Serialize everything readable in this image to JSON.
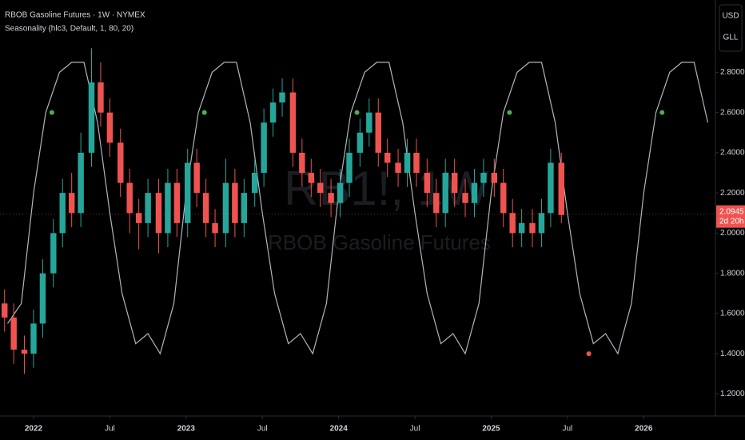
{
  "chart_data": {
    "type": "candlestick",
    "title": "RBOB Gasoline Futures · 1W · NYMEX",
    "subtitle": "Seasonality (hlc3, Default, 1, 80, 20)",
    "watermark": [
      "RB1!, 1W",
      "RBOB Gasoline Futures"
    ],
    "currency_buttons": [
      "USD",
      "GLL"
    ],
    "up_color": "#26a69a",
    "down_color": "#ef5350",
    "x": [
      2021.81,
      2021.87,
      2021.94,
      2022.0,
      2022.06,
      2022.13,
      2022.19,
      2022.25,
      2022.31,
      2022.38,
      2022.44,
      2022.5,
      2022.57,
      2022.63,
      2022.69,
      2022.75,
      2022.82,
      2022.88,
      2022.94,
      2023.01,
      2023.07,
      2023.13,
      2023.19,
      2023.26,
      2023.32,
      2023.38,
      2023.45,
      2023.51,
      2023.57,
      2023.63,
      2023.7,
      2023.76,
      2023.82,
      2023.88,
      2023.95,
      2024.01,
      2024.07,
      2024.14,
      2024.2,
      2024.26,
      2024.32,
      2024.39,
      2024.45,
      2024.51,
      2024.58,
      2024.64,
      2024.7,
      2024.76,
      2024.83,
      2024.89,
      2024.95,
      2025.02,
      2025.08,
      2025.14,
      2025.2,
      2025.27,
      2025.33,
      2025.39,
      2025.46
    ],
    "open": [
      1.65,
      1.58,
      1.42,
      1.4,
      1.55,
      1.8,
      2.0,
      2.2,
      2.1,
      2.4,
      2.75,
      2.6,
      2.45,
      2.25,
      2.1,
      2.05,
      2.2,
      2.0,
      2.25,
      2.05,
      2.35,
      2.2,
      2.05,
      2.0,
      2.25,
      2.05,
      2.2,
      2.3,
      2.55,
      2.65,
      2.7,
      2.4,
      2.3,
      2.25,
      2.2,
      2.15,
      2.25,
      2.4,
      2.5,
      2.6,
      2.4,
      2.35,
      2.3,
      2.4,
      2.3,
      2.2,
      2.1,
      2.3,
      2.2,
      2.15,
      2.25,
      2.3,
      2.25,
      2.1,
      2.0,
      2.05,
      2.0,
      2.1,
      2.35
    ],
    "high": [
      1.72,
      1.65,
      1.49,
      1.62,
      1.87,
      2.07,
      2.27,
      2.3,
      2.5,
      2.92,
      2.85,
      2.67,
      2.52,
      2.32,
      2.17,
      2.27,
      2.27,
      2.32,
      2.32,
      2.42,
      2.42,
      2.27,
      2.12,
      2.37,
      2.32,
      2.27,
      2.37,
      2.62,
      2.72,
      2.77,
      2.77,
      2.47,
      2.37,
      2.32,
      2.27,
      2.32,
      2.47,
      2.57,
      2.67,
      2.67,
      2.47,
      2.42,
      2.47,
      2.47,
      2.37,
      2.27,
      2.37,
      2.37,
      2.27,
      2.32,
      2.37,
      2.37,
      2.32,
      2.17,
      2.12,
      2.12,
      2.17,
      2.42,
      2.4
    ],
    "low": [
      1.51,
      1.35,
      1.3,
      1.33,
      1.48,
      1.73,
      1.93,
      2.03,
      2.03,
      2.33,
      2.53,
      2.38,
      2.18,
      2.0,
      1.92,
      1.98,
      1.9,
      1.93,
      1.98,
      1.98,
      2.13,
      1.98,
      1.93,
      1.93,
      1.98,
      1.98,
      2.13,
      2.23,
      2.48,
      2.58,
      2.33,
      2.23,
      2.18,
      2.13,
      2.08,
      2.08,
      2.18,
      2.33,
      2.43,
      2.33,
      2.28,
      2.23,
      2.23,
      2.23,
      2.13,
      2.03,
      2.03,
      2.13,
      2.08,
      2.08,
      2.18,
      2.18,
      2.03,
      1.93,
      1.93,
      1.93,
      1.93,
      2.03,
      2.05
    ],
    "close": [
      1.58,
      1.42,
      1.4,
      1.55,
      1.8,
      2.0,
      2.2,
      2.1,
      2.4,
      2.75,
      2.6,
      2.45,
      2.25,
      2.1,
      2.05,
      2.2,
      2.0,
      2.25,
      2.05,
      2.35,
      2.2,
      2.05,
      2.0,
      2.25,
      2.05,
      2.2,
      2.3,
      2.55,
      2.65,
      2.7,
      2.4,
      2.3,
      2.25,
      2.2,
      2.15,
      2.25,
      2.4,
      2.5,
      2.6,
      2.4,
      2.35,
      2.3,
      2.4,
      2.3,
      2.2,
      2.1,
      2.3,
      2.2,
      2.15,
      2.25,
      2.3,
      2.25,
      2.1,
      2.0,
      2.05,
      2.0,
      2.1,
      2.35,
      2.09
    ],
    "seasonality": {
      "color": "#b2b5be",
      "x": [
        2021.83,
        2021.92,
        2022.0,
        2022.08,
        2022.17,
        2022.25,
        2022.33,
        2022.42,
        2022.5,
        2022.58,
        2022.67,
        2022.75,
        2022.83,
        2022.92,
        2023.0,
        2023.08,
        2023.17,
        2023.25,
        2023.33,
        2023.42,
        2023.5,
        2023.58,
        2023.67,
        2023.75,
        2023.83,
        2023.92,
        2024.0,
        2024.08,
        2024.17,
        2024.25,
        2024.33,
        2024.42,
        2024.5,
        2024.58,
        2024.67,
        2024.75,
        2024.83,
        2024.92,
        2025.0,
        2025.08,
        2025.17,
        2025.25,
        2025.33,
        2025.42,
        2025.5,
        2025.58,
        2025.67,
        2025.75,
        2025.83,
        2025.92,
        2026.0,
        2026.08,
        2026.17,
        2026.25,
        2026.33,
        2026.42
      ],
      "values": [
        1.55,
        1.65,
        2.2,
        2.6,
        2.8,
        2.85,
        2.85,
        2.55,
        2.1,
        1.7,
        1.45,
        1.5,
        1.4,
        1.65,
        2.2,
        2.6,
        2.8,
        2.85,
        2.85,
        2.55,
        2.1,
        1.7,
        1.45,
        1.5,
        1.4,
        1.65,
        2.2,
        2.6,
        2.8,
        2.85,
        2.85,
        2.55,
        2.1,
        1.7,
        1.45,
        1.5,
        1.4,
        1.65,
        2.2,
        2.6,
        2.8,
        2.85,
        2.85,
        2.55,
        2.1,
        1.7,
        1.45,
        1.5,
        1.4,
        1.65,
        2.2,
        2.6,
        2.8,
        2.85,
        2.85,
        2.55
      ]
    },
    "signals": [
      {
        "x": 2022.12,
        "value": 2.6,
        "color": "#4caf50"
      },
      {
        "x": 2023.12,
        "value": 2.6,
        "color": "#4caf50"
      },
      {
        "x": 2024.12,
        "value": 2.6,
        "color": "#4caf50"
      },
      {
        "x": 2025.12,
        "value": 2.6,
        "color": "#4caf50"
      },
      {
        "x": 2025.64,
        "value": 1.4,
        "color": "#ef5350"
      },
      {
        "x": 2026.12,
        "value": 2.6,
        "color": "#4caf50"
      }
    ],
    "last_price": 2.0945,
    "countdown": "2d 20h",
    "xlim": [
      2021.78,
      2026.47
    ],
    "xticks": [
      2022,
      {
        "value": 2022.5,
        "label": "Jul"
      },
      2023,
      {
        "value": 2023.5,
        "label": "Jul"
      },
      2024,
      {
        "value": 2024.5,
        "label": "Jul"
      },
      2025,
      {
        "value": 2025.5,
        "label": "Jul"
      },
      2026
    ],
    "ylim": [
      1.09,
      3.16
    ],
    "yticks": [
      {
        "value": 1.2,
        "label": "1.2000"
      },
      {
        "value": 1.4,
        "label": "1.4000"
      },
      {
        "value": 1.6,
        "label": "1.6000"
      },
      {
        "value": 1.8,
        "label": "1.8000"
      },
      {
        "value": 2.0,
        "label": "2.0000"
      },
      {
        "value": 2.2,
        "label": "2.2000"
      },
      {
        "value": 2.4,
        "label": "2.4000"
      },
      {
        "value": 2.6,
        "label": "2.6000"
      },
      {
        "value": 2.8,
        "label": "2.8000"
      }
    ]
  }
}
